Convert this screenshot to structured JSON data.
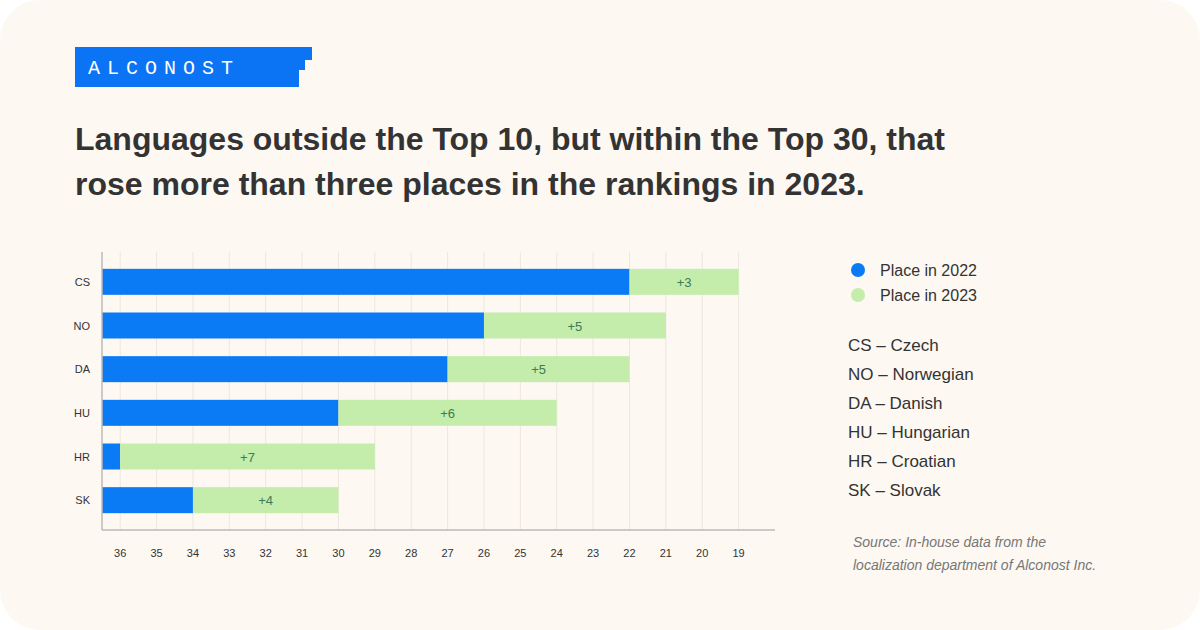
{
  "brand": "ALCONOST",
  "chart_data": {
    "type": "bar",
    "orientation": "horizontal",
    "title": [
      "Languages outside the Top 10, but within the Top 30, that",
      "rose more than three places in the rankings in 2023."
    ],
    "categories": [
      "CS",
      "NO",
      "DA",
      "HU",
      "HR",
      "SK"
    ],
    "series": [
      {
        "name": "Place in 2022",
        "color": "#0b7bf5",
        "values": [
          22,
          26,
          27,
          30,
          36,
          34
        ]
      },
      {
        "name": "Place in 2023",
        "color": "#c4ecab",
        "values": [
          19,
          21,
          22,
          24,
          29,
          30
        ],
        "change": [
          3,
          5,
          5,
          6,
          7,
          4
        ],
        "change_labels": [
          "+3",
          "+5",
          "+5",
          "+6",
          "+7",
          "+4"
        ]
      }
    ],
    "xlim": [
      36.5,
      18
    ],
    "xticks": [
      36,
      35,
      34,
      33,
      32,
      31,
      30,
      29,
      28,
      27,
      26,
      25,
      24,
      23,
      22,
      21,
      20,
      19
    ],
    "grid": true,
    "legend": "right"
  },
  "language_key": [
    "CS – Czech",
    "NO – Norwegian",
    "DA – Danish",
    "HU – Hungarian",
    "HR – Croatian",
    "SK – Slovak"
  ],
  "source": [
    "Source: In-house data from the",
    "localization department of Alconost Inc."
  ]
}
